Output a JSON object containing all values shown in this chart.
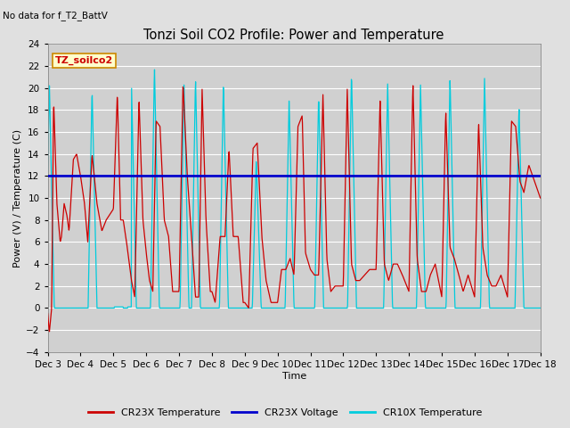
{
  "title": "Tonzi Soil CO2 Profile: Power and Temperature",
  "subtitle": "No data for f_T2_BattV",
  "ylabel": "Power (V) / Temperature (C)",
  "xlabel": "Time",
  "box_label": "TZ_soilco2",
  "ylim": [
    -4,
    24
  ],
  "yticks": [
    -4,
    -2,
    0,
    2,
    4,
    6,
    8,
    10,
    12,
    14,
    16,
    18,
    20,
    22,
    24
  ],
  "x_tick_labels": [
    "Dec 3",
    "Dec 4",
    "Dec 5",
    "Dec 6",
    "Dec 7",
    "Dec 8",
    "Dec 9",
    "Dec 10",
    "Dec 11",
    "Dec 12",
    "Dec 13",
    "Dec 14",
    "Dec 15",
    "Dec 16",
    "Dec 17",
    "Dec 18"
  ],
  "n_days": 15,
  "voltage_value": 12.0,
  "cr23x_temp_color": "#cc0000",
  "cr23x_volt_color": "#0000cc",
  "cr10x_temp_color": "#00ccdd",
  "bg_color": "#e0e0e0",
  "plot_bg_color": "#d0d0d0",
  "grid_color": "#ffffff",
  "legend_entries": [
    "CR23X Temperature",
    "CR23X Voltage",
    "CR10X Temperature"
  ],
  "legend_colors": [
    "#cc0000",
    "#0000cc",
    "#00ccdd"
  ],
  "box_bg": "#ffffcc",
  "box_edge": "#cc8800",
  "figsize": [
    6.4,
    4.8
  ],
  "dpi": 100
}
